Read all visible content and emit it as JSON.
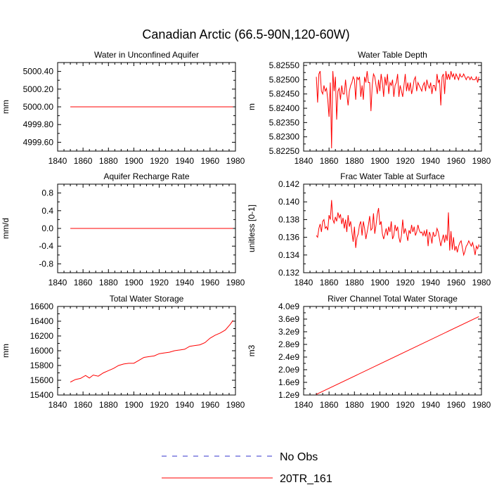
{
  "figure": {
    "title": "Canadian Arctic (66.5-90N,120-60W)",
    "legend": [
      {
        "label": "No Obs",
        "color": "#3333cc",
        "dash": "dashed"
      },
      {
        "label": "20TR_161",
        "color": "#ff0000",
        "dash": "solid"
      }
    ]
  },
  "chart_data": [
    {
      "type": "line",
      "title": "Water in Unconfined Aquifer",
      "ylabel": "mm",
      "xlim": [
        1840,
        1980
      ],
      "ylim": [
        4999.5,
        5000.5
      ],
      "xticks": [
        1840,
        1860,
        1880,
        1900,
        1920,
        1940,
        1960,
        1980
      ],
      "yticks": [
        4999.6,
        4999.8,
        5000.0,
        5000.2,
        5000.4
      ],
      "ytick_labels": [
        "4999.60",
        "4999.80",
        "5000.00",
        "5000.20",
        "5000.40"
      ],
      "series": [
        {
          "name": "20TR_161",
          "color": "#ff0000",
          "x": [
            1850,
            1978
          ],
          "y": [
            5000.0,
            5000.0
          ]
        }
      ]
    },
    {
      "type": "line",
      "title": "Water Table Depth",
      "ylabel": "m",
      "xlim": [
        1840,
        1980
      ],
      "ylim": [
        5.8225,
        5.8256
      ],
      "xticks": [
        1840,
        1860,
        1880,
        1900,
        1920,
        1940,
        1960,
        1980
      ],
      "yticks": [
        5.8225,
        5.823,
        5.8235,
        5.824,
        5.8245,
        5.825,
        5.8255
      ],
      "ytick_labels": [
        "5.82250",
        "5.82300",
        "5.82350",
        "5.82400",
        "5.82450",
        "5.82500",
        "5.82550"
      ],
      "series": [
        {
          "name": "20TR_161",
          "color": "#ff0000",
          "x": [
            1850,
            1851,
            1852,
            1853,
            1854,
            1855,
            1856,
            1857,
            1858,
            1859,
            1860,
            1861,
            1862,
            1863,
            1864,
            1865,
            1866,
            1867,
            1868,
            1869,
            1870,
            1871,
            1872,
            1873,
            1874,
            1875,
            1876,
            1877,
            1878,
            1879,
            1880,
            1881,
            1882,
            1883,
            1884,
            1885,
            1886,
            1887,
            1888,
            1889,
            1890,
            1891,
            1892,
            1893,
            1894,
            1895,
            1896,
            1897,
            1898,
            1899,
            1900,
            1901,
            1902,
            1903,
            1904,
            1905,
            1906,
            1907,
            1908,
            1909,
            1910,
            1911,
            1912,
            1913,
            1914,
            1915,
            1916,
            1917,
            1918,
            1919,
            1920,
            1921,
            1922,
            1923,
            1924,
            1925,
            1926,
            1927,
            1928,
            1929,
            1930,
            1931,
            1932,
            1933,
            1934,
            1935,
            1936,
            1937,
            1938,
            1939,
            1940,
            1941,
            1942,
            1943,
            1944,
            1945,
            1946,
            1947,
            1948,
            1949,
            1950,
            1951,
            1952,
            1953,
            1954,
            1955,
            1956,
            1957,
            1958,
            1959,
            1960,
            1961,
            1962,
            1963,
            1964,
            1965,
            1966,
            1967,
            1968,
            1969,
            1970,
            1971,
            1972,
            1973,
            1974,
            1975,
            1976,
            1977,
            1978
          ],
          "y": [
            5.8251,
            5.8242,
            5.8252,
            5.8253,
            5.8246,
            5.8245,
            5.8248,
            5.8246,
            5.8247,
            5.8243,
            5.8237,
            5.8249,
            5.8226,
            5.8253,
            5.8246,
            5.8251,
            5.8236,
            5.8246,
            5.8247,
            5.8243,
            5.8248,
            5.8245,
            5.8245,
            5.825,
            5.8245,
            5.8241,
            5.8246,
            5.8248,
            5.8249,
            5.8251,
            5.825,
            5.8243,
            5.8251,
            5.825,
            5.8251,
            5.8244,
            5.8248,
            5.8243,
            5.8251,
            5.8249,
            5.8253,
            5.8249,
            5.8249,
            5.8239,
            5.8248,
            5.8252,
            5.8251,
            5.8248,
            5.8245,
            5.825,
            5.8246,
            5.8252,
            5.8249,
            5.8244,
            5.8251,
            5.8248,
            5.8252,
            5.8245,
            5.8249,
            5.8248,
            5.825,
            5.8244,
            5.8248,
            5.8249,
            5.8252,
            5.8244,
            5.8248,
            5.8246,
            5.8244,
            5.8248,
            5.8252,
            5.8246,
            5.8249,
            5.8246,
            5.8249,
            5.8245,
            5.8247,
            5.825,
            5.8251,
            5.8246,
            5.8249,
            5.8248,
            5.8247,
            5.8246,
            5.8248,
            5.8249,
            5.8246,
            5.825,
            5.8248,
            5.8247,
            5.8249,
            5.8245,
            5.8248,
            5.8248,
            5.8246,
            5.8252,
            5.8249,
            5.825,
            5.8241,
            5.8251,
            5.8252,
            5.8245,
            5.8253,
            5.825,
            5.8252,
            5.825,
            5.8253,
            5.8251,
            5.8252,
            5.825,
            5.8252,
            5.8251,
            5.825,
            5.8252,
            5.8251,
            5.8251,
            5.8252,
            5.8251,
            5.825,
            5.8251,
            5.8251,
            5.825,
            5.8251,
            5.825,
            5.825,
            5.825,
            5.8251,
            5.8249,
            5.8251
          ]
        }
      ]
    },
    {
      "type": "line",
      "title": "Aquifer Recharge Rate",
      "ylabel": "mm/d",
      "xlim": [
        1840,
        1980
      ],
      "ylim": [
        -1.0,
        1.0
      ],
      "xticks": [
        1840,
        1860,
        1880,
        1900,
        1920,
        1940,
        1960,
        1980
      ],
      "yticks": [
        -0.8,
        -0.4,
        0.0,
        0.4,
        0.8
      ],
      "ytick_labels": [
        "-0.8",
        "-0.4",
        "0.0",
        "0.4",
        "0.8"
      ],
      "series": [
        {
          "name": "20TR_161",
          "color": "#ff0000",
          "x": [
            1850,
            1978
          ],
          "y": [
            0.0,
            0.0
          ]
        }
      ]
    },
    {
      "type": "line",
      "title": "Frac Water Table at Surface",
      "ylabel": "unitless [0-1]",
      "xlim": [
        1840,
        1980
      ],
      "ylim": [
        0.132,
        0.142
      ],
      "xticks": [
        1840,
        1860,
        1880,
        1900,
        1920,
        1940,
        1960,
        1980
      ],
      "yticks": [
        0.132,
        0.134,
        0.136,
        0.138,
        0.14,
        0.142
      ],
      "ytick_labels": [
        "0.132",
        "0.134",
        "0.136",
        "0.138",
        "0.140",
        "0.142"
      ],
      "series": [
        {
          "name": "20TR_161",
          "color": "#ff0000",
          "x": [
            1850,
            1851,
            1852,
            1853,
            1854,
            1855,
            1856,
            1857,
            1858,
            1859,
            1860,
            1861,
            1862,
            1863,
            1864,
            1865,
            1866,
            1867,
            1868,
            1869,
            1870,
            1871,
            1872,
            1873,
            1874,
            1875,
            1876,
            1877,
            1878,
            1879,
            1880,
            1881,
            1882,
            1883,
            1884,
            1885,
            1886,
            1887,
            1888,
            1889,
            1890,
            1891,
            1892,
            1893,
            1894,
            1895,
            1896,
            1897,
            1898,
            1899,
            1900,
            1901,
            1902,
            1903,
            1904,
            1905,
            1906,
            1907,
            1908,
            1909,
            1910,
            1911,
            1912,
            1913,
            1914,
            1915,
            1916,
            1917,
            1918,
            1919,
            1920,
            1921,
            1922,
            1923,
            1924,
            1925,
            1926,
            1927,
            1928,
            1929,
            1930,
            1931,
            1932,
            1933,
            1934,
            1935,
            1936,
            1937,
            1938,
            1939,
            1940,
            1941,
            1942,
            1943,
            1944,
            1945,
            1946,
            1947,
            1948,
            1949,
            1950,
            1951,
            1952,
            1953,
            1954,
            1955,
            1956,
            1957,
            1958,
            1959,
            1960,
            1961,
            1962,
            1963,
            1964,
            1965,
            1966,
            1967,
            1968,
            1969,
            1970,
            1971,
            1972,
            1973,
            1974,
            1975,
            1976,
            1977,
            1978
          ],
          "y": [
            0.1362,
            0.136,
            0.137,
            0.1375,
            0.1366,
            0.1378,
            0.138,
            0.137,
            0.1372,
            0.1368,
            0.1385,
            0.138,
            0.1402,
            0.138,
            0.1376,
            0.1383,
            0.1378,
            0.1388,
            0.1382,
            0.1386,
            0.1375,
            0.1382,
            0.137,
            0.138,
            0.1366,
            0.1385,
            0.1372,
            0.1378,
            0.1366,
            0.1355,
            0.1372,
            0.1348,
            0.136,
            0.1364,
            0.1374,
            0.1378,
            0.1362,
            0.1378,
            0.137,
            0.1358,
            0.1366,
            0.1374,
            0.1384,
            0.1368,
            0.137,
            0.1387,
            0.1364,
            0.1374,
            0.1386,
            0.1393,
            0.1374,
            0.1378,
            0.1364,
            0.1358,
            0.1364,
            0.137,
            0.1362,
            0.1372,
            0.1366,
            0.1378,
            0.1358,
            0.1362,
            0.1374,
            0.1367,
            0.1372,
            0.136,
            0.1354,
            0.1362,
            0.138,
            0.1364,
            0.137,
            0.1364,
            0.1356,
            0.1368,
            0.1364,
            0.1374,
            0.1366,
            0.1372,
            0.1362,
            0.1366,
            0.1374,
            0.1368,
            0.1365,
            0.1366,
            0.1362,
            0.1367,
            0.1361,
            0.1369,
            0.135,
            0.1366,
            0.1362,
            0.1353,
            0.1366,
            0.1361,
            0.1362,
            0.137,
            0.1366,
            0.1358,
            0.135,
            0.1357,
            0.1363,
            0.1354,
            0.1363,
            0.1356,
            0.1388,
            0.1345,
            0.1367,
            0.1346,
            0.136,
            0.1345,
            0.135,
            0.1343,
            0.135,
            0.1354,
            0.1356,
            0.1348,
            0.134,
            0.1344,
            0.135,
            0.1352,
            0.1356,
            0.1353,
            0.135,
            0.1354,
            0.1348,
            0.134,
            0.135,
            0.1347,
            0.1352
          ]
        }
      ]
    },
    {
      "type": "line",
      "title": "Total Water Storage",
      "ylabel": "mm",
      "xlim": [
        1840,
        1980
      ],
      "ylim": [
        15400,
        16600
      ],
      "xticks": [
        1840,
        1860,
        1880,
        1900,
        1920,
        1940,
        1960,
        1980
      ],
      "yticks": [
        15400,
        15600,
        15800,
        16000,
        16200,
        16400,
        16600
      ],
      "ytick_labels": [
        "15400",
        "15600",
        "15800",
        "16000",
        "16200",
        "16400",
        "16600"
      ],
      "series": [
        {
          "name": "20TR_161",
          "color": "#ff0000",
          "x": [
            1850,
            1854,
            1858,
            1862,
            1865,
            1868,
            1872,
            1876,
            1880,
            1884,
            1888,
            1892,
            1896,
            1900,
            1904,
            1908,
            1912,
            1916,
            1920,
            1924,
            1928,
            1932,
            1936,
            1940,
            1944,
            1948,
            1952,
            1956,
            1960,
            1964,
            1968,
            1972,
            1976,
            1978
          ],
          "y": [
            15575,
            15610,
            15625,
            15665,
            15630,
            15670,
            15655,
            15700,
            15730,
            15760,
            15800,
            15820,
            15830,
            15830,
            15870,
            15910,
            15920,
            15930,
            15960,
            15970,
            15980,
            16000,
            16010,
            16020,
            16060,
            16070,
            16080,
            16110,
            16170,
            16210,
            16240,
            16280,
            16360,
            16410
          ]
        }
      ]
    },
    {
      "type": "line",
      "title": "River Channel Total Water Storage",
      "ylabel": "m3",
      "xlim": [
        1840,
        1980
      ],
      "ylim": [
        1200000000.0,
        4000000000.0
      ],
      "xticks": [
        1840,
        1860,
        1880,
        1900,
        1920,
        1940,
        1960,
        1980
      ],
      "yticks": [
        1200000000.0,
        1600000000.0,
        2000000000.0,
        2400000000.0,
        2800000000.0,
        3200000000.0,
        3600000000.0,
        4000000000.0
      ],
      "ytick_labels": [
        "1.2e9",
        "1.6e9",
        "2.0e9",
        "2.4e9",
        "2.8e9",
        "3.2e9",
        "3.6e9",
        "4.0e9"
      ],
      "series": [
        {
          "name": "20TR_161",
          "color": "#ff0000",
          "x": [
            1850,
            1978
          ],
          "y": [
            1220000000.0,
            3680000000.0
          ]
        }
      ]
    }
  ]
}
